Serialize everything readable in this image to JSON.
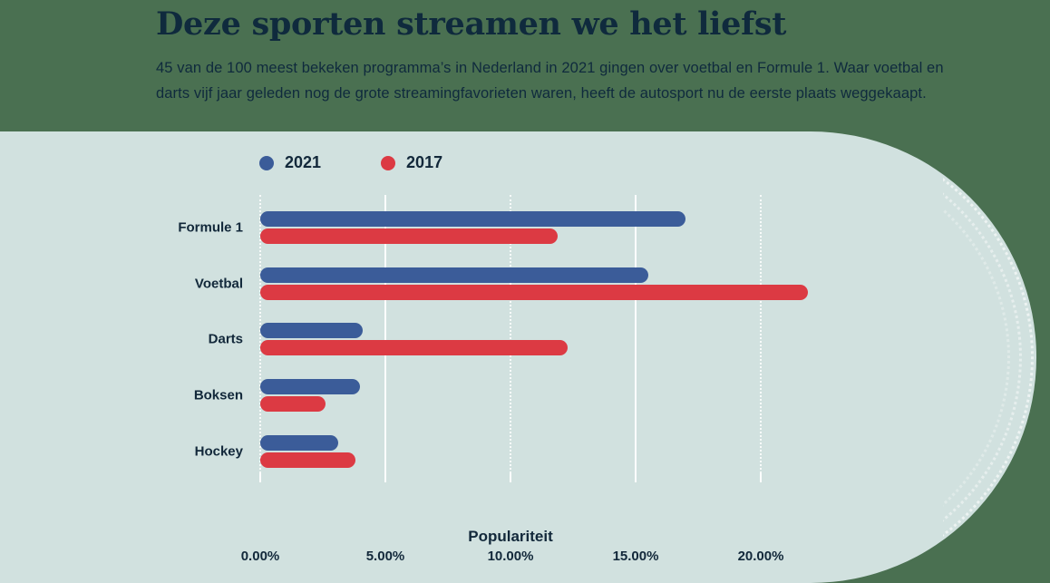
{
  "page": {
    "background_color": "#4a7051",
    "panel_color": "#d1e1df",
    "text_color": "#0f2a3d"
  },
  "header": {
    "title": "Deze sporten streamen we het liefst",
    "subtitle_line1": "45 van de 100 meest bekeken programma’s in Nederland in 2021 gingen over voetbal en Formule 1. Waar voetbal en",
    "subtitle_line2": "darts vijf jaar geleden nog de grote streamingfavorieten waren, heeft de autosport nu de eerste plaats weggekaapt."
  },
  "chart_data": {
    "type": "bar",
    "orientation": "horizontal",
    "categories": [
      "Formule 1",
      "Voetbal",
      "Darts",
      "Boksen",
      "Hockey"
    ],
    "series": [
      {
        "name": "2021",
        "color": "#3b5c99",
        "values": [
          17.0,
          15.5,
          4.1,
          4.0,
          3.1
        ]
      },
      {
        "name": "2017",
        "color": "#dc3a43",
        "values": [
          11.9,
          21.9,
          12.3,
          2.6,
          3.8
        ]
      }
    ],
    "xlabel": "Populariteit",
    "x_ticks": [
      "0.00%",
      "5.00%",
      "10.00%",
      "15.00%",
      "20.00%"
    ],
    "x_tick_values": [
      0,
      5,
      10,
      15,
      20
    ],
    "gridline_styles": [
      "dotted",
      "solid",
      "dotted",
      "solid",
      "dotted"
    ],
    "xlim": [
      0,
      22.4
    ],
    "grid": true,
    "legend_position": "top"
  }
}
